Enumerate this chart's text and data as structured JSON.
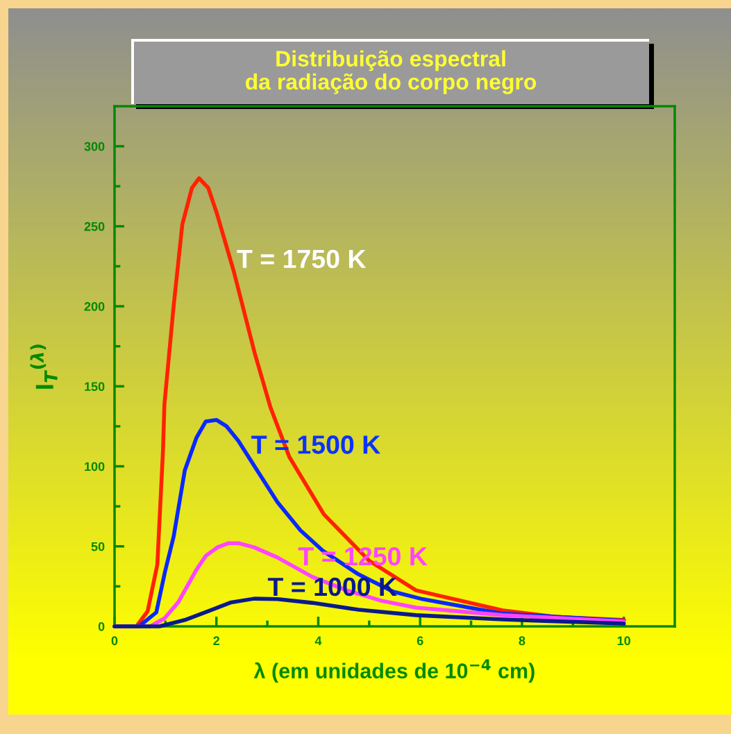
{
  "chart_data": {
    "type": "line",
    "title": "Distribuição espectral\nda radiação do corpo negro",
    "xlabel": "λ (em unidades de 10$^{−4}$ cm)",
    "ylabel": "I$_{T}$$^{(λ)}$",
    "series": [
      {
        "name": "T = 1750 K",
        "color": "#ff2200",
        "x": [
          0,
          0.43,
          0.65,
          0.84,
          0.95,
          0.98,
          1.16,
          1.33,
          1.52,
          1.66,
          1.84,
          2.01,
          2.34,
          2.75,
          3.06,
          3.43,
          4.11,
          5.0,
          5.92,
          7.62,
          8.65,
          10.0
        ],
        "values": [
          0,
          0,
          9.5,
          38.6,
          109,
          139,
          200,
          251,
          274,
          280,
          274,
          258,
          222,
          171,
          137,
          106,
          70,
          41,
          22.5,
          10,
          6,
          4
        ]
      },
      {
        "name": "T = 1500 K",
        "color": "#0a28ff",
        "x": [
          0,
          0.48,
          0.82,
          0.99,
          1.16,
          1.38,
          1.61,
          1.79,
          2.0,
          2.2,
          2.43,
          2.74,
          3.2,
          3.65,
          4.1,
          4.79,
          5.47,
          6.05,
          7.6,
          10.0
        ],
        "values": [
          0,
          0,
          8.7,
          34,
          56,
          97.5,
          118,
          128,
          129,
          125,
          116,
          100.5,
          77.6,
          60,
          47,
          32.5,
          21.7,
          17,
          8,
          3.5
        ]
      },
      {
        "name": "T = 1250 K",
        "color": "#ff44ff",
        "x": [
          0,
          0.7,
          0.98,
          1.25,
          1.61,
          1.79,
          2.02,
          2.24,
          2.43,
          2.74,
          3.2,
          3.88,
          4.56,
          5.24,
          5.92,
          7.62,
          10.0
        ],
        "values": [
          0,
          0,
          5,
          15,
          35.5,
          44,
          49.4,
          52,
          52,
          49.4,
          43,
          31,
          22.5,
          16,
          11.7,
          7,
          3
        ]
      },
      {
        "name": "T = 1000 K",
        "color": "#0a1a8c",
        "x": [
          0,
          0.88,
          1.38,
          1.84,
          2.29,
          2.74,
          3.2,
          3.88,
          4.79,
          5.92,
          7.62,
          10.0
        ],
        "values": [
          0,
          0,
          4,
          9.5,
          15,
          17.3,
          17,
          14.7,
          10.4,
          7,
          4.3,
          1.7
        ]
      }
    ],
    "xlim": [
      0,
      11
    ],
    "ylim": [
      0,
      325
    ],
    "xticks": [
      0,
      {
        "value": 1,
        "label": null
      },
      2,
      {
        "value": 3,
        "label": null
      },
      4,
      {
        "value": 5,
        "label": null
      },
      6,
      {
        "value": 7,
        "label": null
      },
      8,
      {
        "value": 9,
        "label": null
      },
      10
    ],
    "yticks": [
      0,
      {
        "value": 25,
        "label": null
      },
      50,
      {
        "value": 75,
        "label": null
      },
      100,
      {
        "value": 125,
        "label": null
      },
      150,
      {
        "value": 175,
        "label": null
      },
      200,
      {
        "value": 225,
        "label": null
      },
      250,
      {
        "value": 275,
        "label": null
      },
      300
    ],
    "grid": false,
    "legend": false
  }
}
